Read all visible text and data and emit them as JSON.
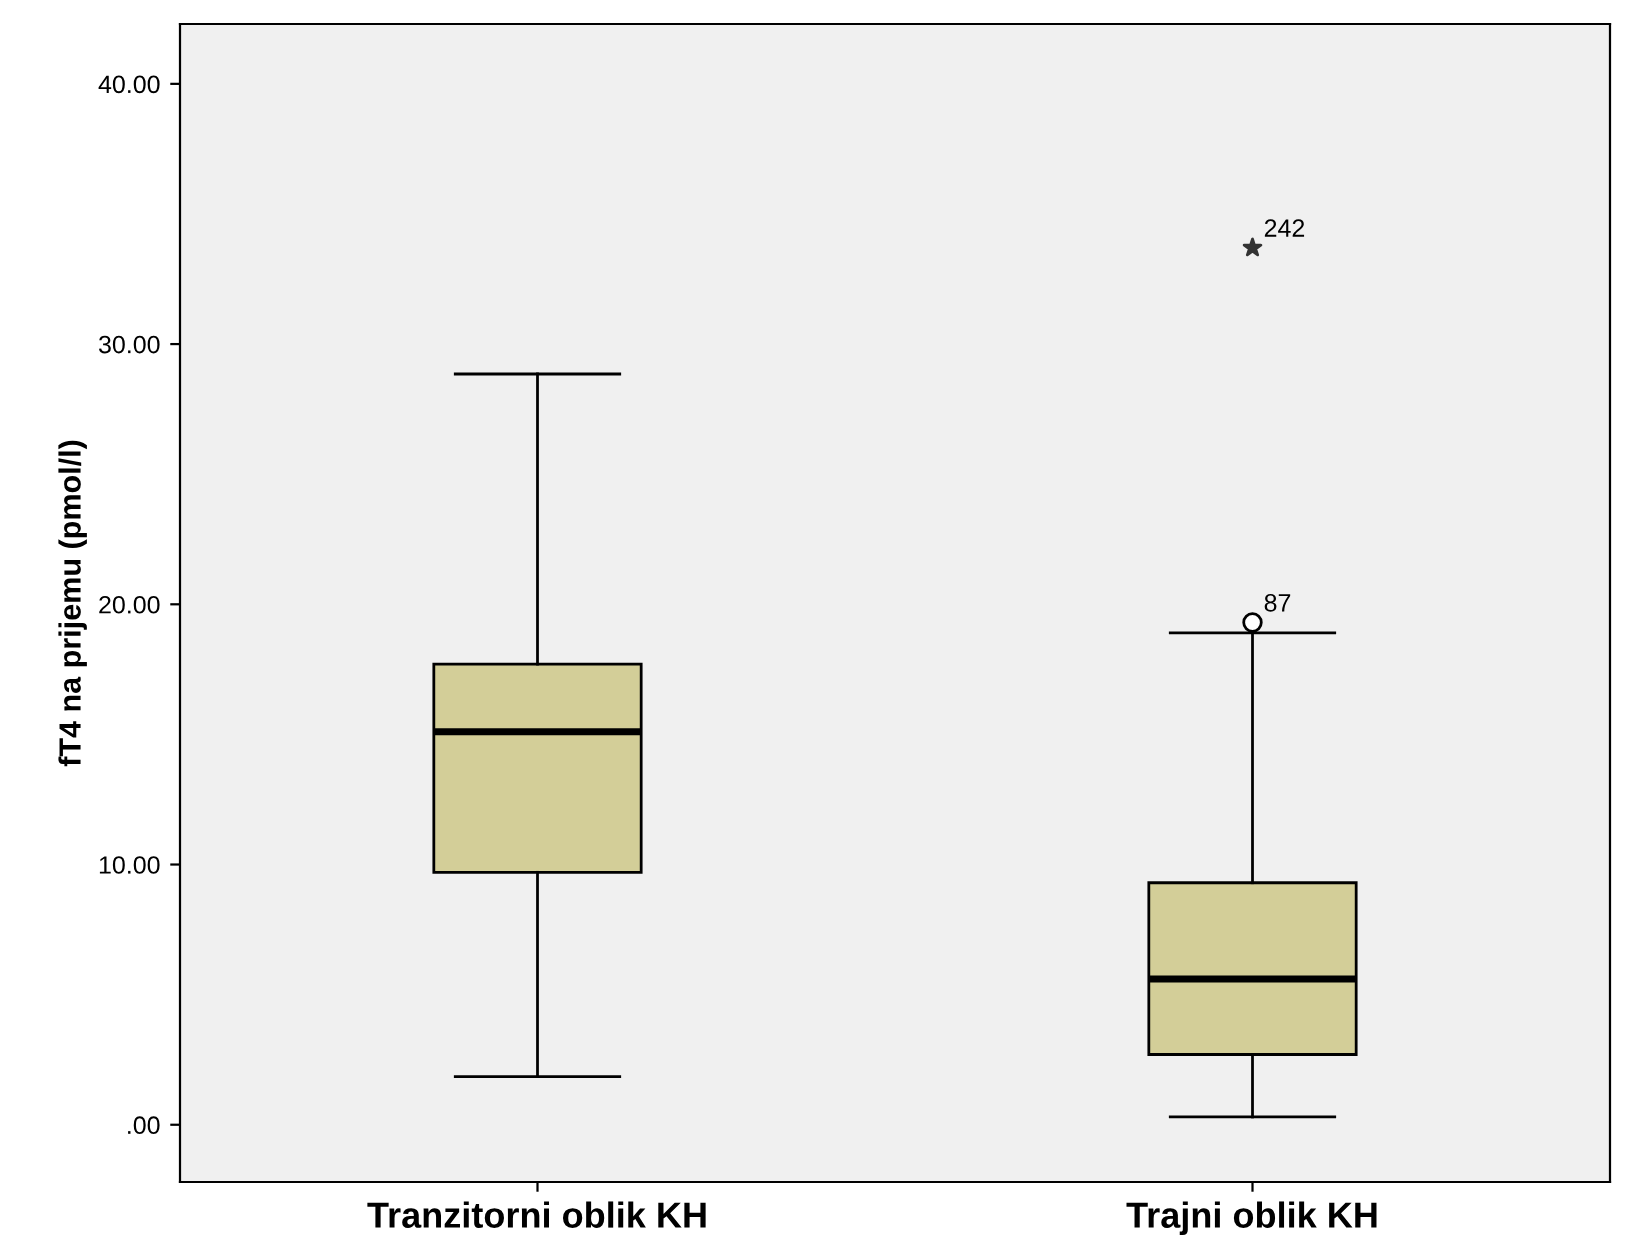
{
  "chart_data": {
    "type": "box",
    "categories": [
      "Tranzitorni oblik KH",
      "Trajni oblik KH"
    ],
    "ylabel": "fT4 na prijemu (pmol/l)",
    "color": "#d3ce98",
    "ylim": [
      -2.2,
      42.3
    ],
    "yticks": [
      {
        "value": 0,
        "label": ".00"
      },
      {
        "value": 10,
        "label": "10.00"
      },
      {
        "value": 20,
        "label": "20.00"
      },
      {
        "value": 30,
        "label": "30.00"
      },
      {
        "value": 40,
        "label": "40.00"
      }
    ],
    "boxes": [
      {
        "low": 1.85,
        "q1": 9.7,
        "median": 15.1,
        "q3": 17.7,
        "high": 28.85
      },
      {
        "low": 0.3,
        "q1": 2.7,
        "median": 5.6,
        "q3": 9.3,
        "high": 18.9,
        "outliers": [
          19.3,
          33.7
        ]
      }
    ],
    "annotations": [
      "87",
      "242"
    ],
    "grid": false
  }
}
